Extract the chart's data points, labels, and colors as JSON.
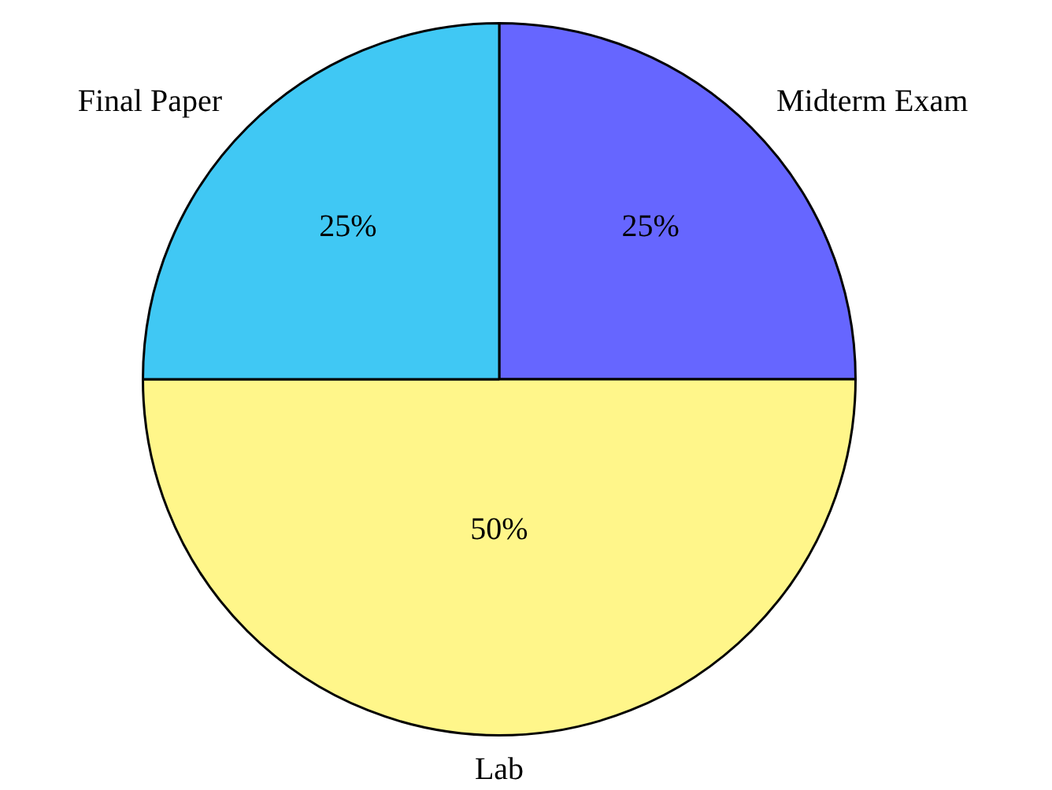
{
  "chart_data": {
    "type": "pie",
    "categories": [
      "Midterm Exam",
      "Lab",
      "Final Paper"
    ],
    "values": [
      25,
      50,
      25
    ],
    "colors": [
      "#6666ff",
      "#fff68a",
      "#40c8f4"
    ],
    "value_labels": [
      "25%",
      "50%",
      "25%"
    ],
    "legend": false
  }
}
